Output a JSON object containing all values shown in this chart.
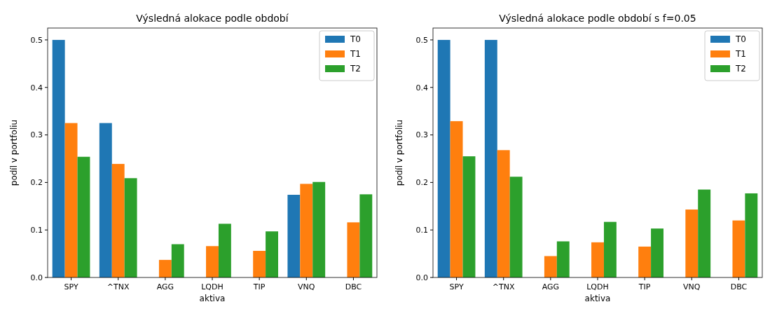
{
  "chart_data": [
    {
      "type": "bar",
      "title": "Výsledná alokace podle období",
      "xlabel": "aktiva",
      "ylabel": "podíl v portfoliu",
      "categories": [
        "SPY",
        "^TNX",
        "AGG",
        "LQDH",
        "TIP",
        "VNQ",
        "DBC"
      ],
      "series": [
        {
          "name": "T0",
          "color": "#1f77b4",
          "values": [
            0.5,
            0.325,
            0,
            0,
            0,
            0.174,
            0
          ]
        },
        {
          "name": "T1",
          "color": "#ff7f0e",
          "values": [
            0.325,
            0.239,
            0.037,
            0.066,
            0.056,
            0.197,
            0.116
          ]
        },
        {
          "name": "T2",
          "color": "#2ca02c",
          "values": [
            0.254,
            0.209,
            0.07,
            0.113,
            0.097,
            0.201,
            0.175
          ]
        }
      ],
      "ylim": [
        0,
        0.525
      ],
      "yticks": [
        {
          "value": 0,
          "label": "0.0"
        },
        0.1,
        0.2,
        0.3,
        0.4,
        0.5
      ],
      "legend": "top right"
    },
    {
      "type": "bar",
      "title": "Výsledná alokace podle období s f=0.05",
      "xlabel": "aktiva",
      "ylabel": "podíl v portfoliu",
      "categories": [
        "SPY",
        "^TNX",
        "AGG",
        "LQDH",
        "TIP",
        "VNQ",
        "DBC"
      ],
      "series": [
        {
          "name": "T0",
          "color": "#1f77b4",
          "values": [
            0.5,
            0.5,
            0,
            0,
            0,
            0,
            0
          ]
        },
        {
          "name": "T1",
          "color": "#ff7f0e",
          "values": [
            0.329,
            0.268,
            0.045,
            0.074,
            0.065,
            0.143,
            0.12
          ]
        },
        {
          "name": "T2",
          "color": "#2ca02c",
          "values": [
            0.255,
            0.212,
            0.076,
            0.117,
            0.103,
            0.185,
            0.177
          ]
        }
      ],
      "ylim": [
        0,
        0.525
      ],
      "yticks": [
        {
          "value": 0,
          "label": "0.0"
        },
        0.1,
        0.2,
        0.3,
        0.4,
        0.5
      ],
      "legend": "top right"
    }
  ]
}
